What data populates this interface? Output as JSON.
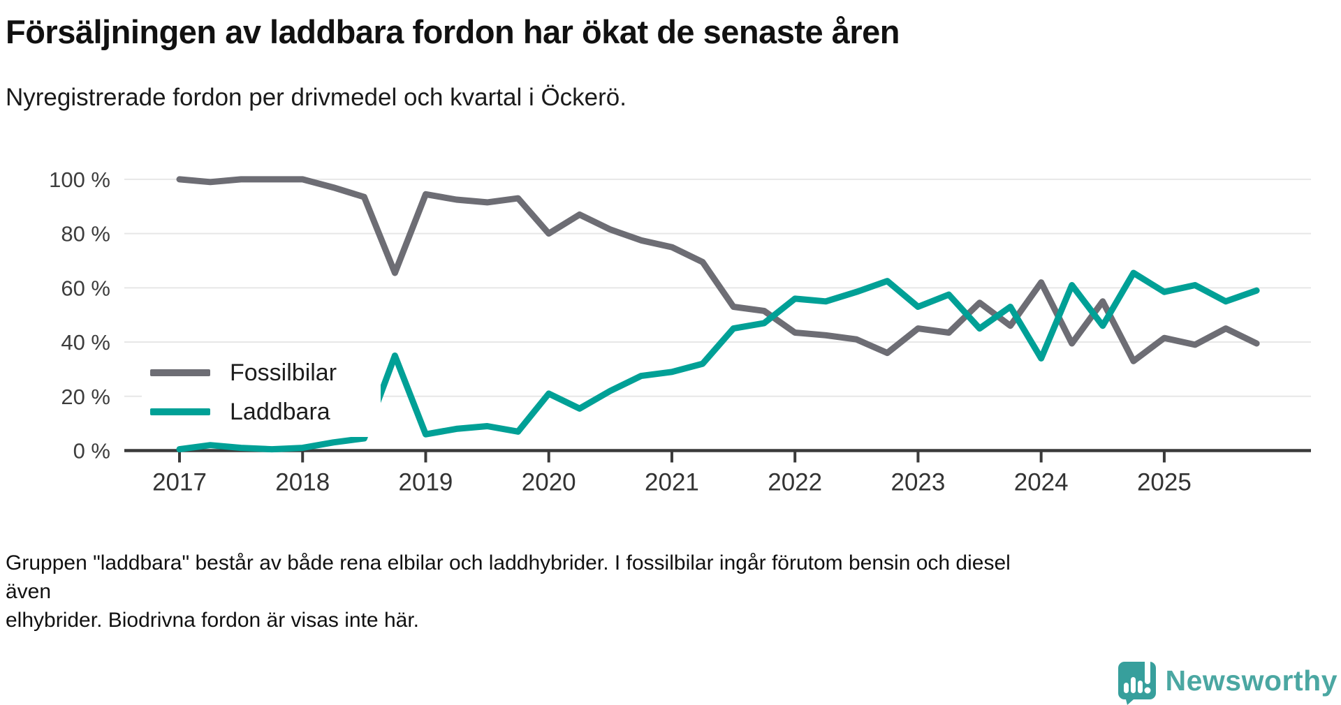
{
  "title": "Försäljningen av laddbara fordon har ökat de senaste åren",
  "subtitle": "Nyregistrerade fordon per drivmedel och kvartal i Öckerö.",
  "footnote": {
    "line1": "Gruppen \"laddbara\" består av både rena elbilar och laddhybrider. I fossilbilar ingår förutom bensin och diesel även",
    "line2": "elhybrider. Biodrivna fordon är visas inte här."
  },
  "legend": [
    {
      "label": "Fossilbilar",
      "color": "#6D6D74"
    },
    {
      "label": "Laddbara",
      "color": "#00A096"
    }
  ],
  "branding": {
    "name": "Newsworthy",
    "text_color": "#4BA7A2",
    "icon_color": "#379F9C",
    "icon_name": "newsworthy-bubble-chart-icon"
  },
  "colors": {
    "gridline": "#E7E7E7",
    "axis": "#3A3A3A",
    "tick_label": "#3D3D3D",
    "fossil_line": "#6D6D74",
    "laddbara_line": "#00A096"
  },
  "chart_data": {
    "type": "line",
    "title": "Försäljningen av laddbara fordon har ökat de senaste åren",
    "subtitle": "Nyregistrerade fordon per drivmedel och kvartal i Öckerö.",
    "unit": "%",
    "ylim": [
      0,
      100
    ],
    "grid": true,
    "legend_position": "inside-left",
    "yticks": [
      "0 %",
      "20 %",
      "40 %",
      "60 %",
      "80 %",
      "100 %"
    ],
    "xticks": [
      "2017",
      "2018",
      "2019",
      "2020",
      "2021",
      "2022",
      "2023",
      "2024",
      "2025"
    ],
    "x": [
      "2017 Q1",
      "2017 Q2",
      "2017 Q3",
      "2017 Q4",
      "2018 Q1",
      "2018 Q2",
      "2018 Q3",
      "2018 Q4",
      "2019 Q1",
      "2019 Q2",
      "2019 Q3",
      "2019 Q4",
      "2020 Q1",
      "2020 Q2",
      "2020 Q3",
      "2020 Q4",
      "2021 Q1",
      "2021 Q2",
      "2021 Q3",
      "2021 Q4",
      "2022 Q1",
      "2022 Q2",
      "2022 Q3",
      "2022 Q4",
      "2023 Q1",
      "2023 Q2",
      "2023 Q3",
      "2023 Q4",
      "2024 Q1",
      "2024 Q2",
      "2024 Q3",
      "2024 Q4",
      "2025 Q1",
      "2025 Q2",
      "2025 Q3",
      "2025 Q4"
    ],
    "series": [
      {
        "name": "Fossilbilar",
        "color": "#6D6D74",
        "values": [
          100,
          99,
          100,
          100,
          100,
          97,
          93.5,
          65.5,
          94.5,
          92.5,
          91.5,
          93,
          80,
          87,
          81.5,
          77.5,
          75,
          69.5,
          53,
          51.5,
          43.5,
          42.5,
          41,
          36,
          45,
          43.5,
          54.5,
          46,
          62,
          39.5,
          55,
          33,
          41.5,
          39,
          45,
          39.5
        ]
      },
      {
        "name": "Laddbara",
        "color": "#00A096",
        "values": [
          0.5,
          2,
          1,
          0.5,
          1,
          3,
          4.5,
          35,
          6,
          8,
          9,
          7,
          21,
          15.5,
          22,
          27.5,
          29,
          32,
          45,
          47,
          56,
          55,
          58.5,
          62.5,
          53,
          57.5,
          45,
          53,
          34,
          61,
          46,
          65.5,
          58.5,
          61,
          55,
          59
        ]
      }
    ]
  }
}
